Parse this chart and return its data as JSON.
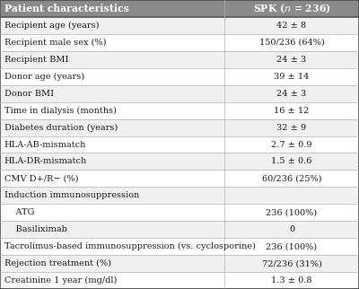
{
  "header": [
    "Patient characteristics",
    "SPK (n = 236)"
  ],
  "rows": [
    [
      "Recipient age (years)",
      "42 ± 8"
    ],
    [
      "Recipient male sex (%)",
      "150/236 (64%)"
    ],
    [
      "Recipient BMI",
      "24 ± 3"
    ],
    [
      "Donor age (years)",
      "39 ± 14"
    ],
    [
      "Donor BMI",
      "24 ± 3"
    ],
    [
      "Time in dialysis (months)",
      "16 ± 12"
    ],
    [
      "Diabetes duration (years)",
      "32 ± 9"
    ],
    [
      "HLA-AB-mismatch",
      "2.7 ± 0.9"
    ],
    [
      "HLA-DR-mismatch",
      "1.5 ± 0.6"
    ],
    [
      "CMV D+/R− (%)",
      "60/236 (25%)"
    ],
    [
      "Induction immunosuppression",
      ""
    ],
    [
      "    ATG",
      "236 (100%)"
    ],
    [
      "    Basiliximab",
      "0"
    ],
    [
      "Tacrolimus-based immunosuppression (vs. cyclosporine)",
      "236 (100%)"
    ],
    [
      "Rejection treatment (%)",
      "72/236 (31%)"
    ],
    [
      "Creatinine 1 year (mg/dl)",
      "1.3 ± 0.8"
    ]
  ],
  "header_bg": "#8a8a8a",
  "header_text_color": "#ffffff",
  "row_bg_even": "#f0f0f0",
  "row_bg_odd": "#ffffff",
  "border_color": "#b0b0b0",
  "text_color": "#1a1a1a",
  "section_row_index": 10,
  "col_split": 0.625,
  "fig_width": 4.0,
  "fig_height": 3.22,
  "dpi": 100
}
